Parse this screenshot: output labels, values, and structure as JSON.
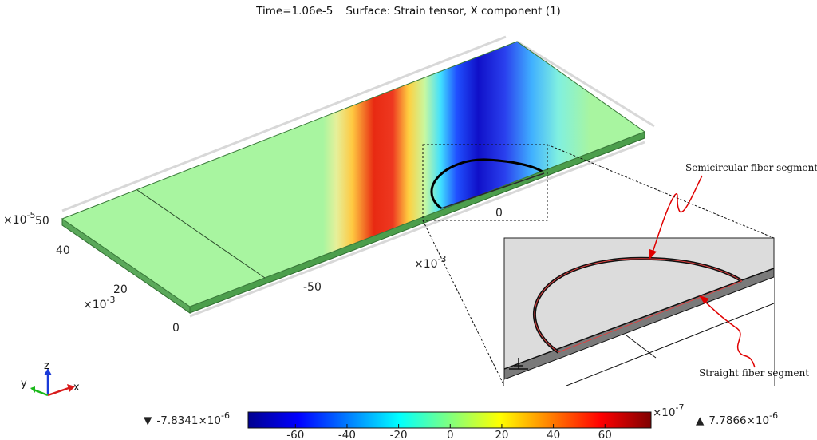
{
  "title": {
    "time": "Time=1.06e-5",
    "surface": "Surface: Strain tensor, X component (1)"
  },
  "axes": {
    "y_exp_left": "×10",
    "y_exp_left_power": "-5",
    "y_tick_top": "50",
    "y_tick_40": "40",
    "y_tick_20": "20",
    "y_exp_2": "×10",
    "y_exp_2_power": "-3",
    "y_tick_0": "0",
    "x_tick_m50": "-50",
    "x_tick_0": "0",
    "x_exp": "×10",
    "x_exp_power": "-3"
  },
  "triad": {
    "z": "z",
    "y": "y",
    "x": "x"
  },
  "annotations": {
    "semicircular": "Semicircular fiber segment",
    "straight": "Straight fiber segment"
  },
  "colorbar": {
    "min_symbol": "▼",
    "min_value": "-7.8341×10",
    "min_power": "-6",
    "max_symbol": "▲",
    "max_value": "7.7866×10",
    "max_power": "-6",
    "scale": "×10",
    "scale_power": "-7",
    "ticks": [
      "-60",
      "-40",
      "-20",
      "0",
      "20",
      "40",
      "60"
    ],
    "colors": [
      "#00008f",
      "#0000ff",
      "#007fff",
      "#00ffff",
      "#7fff7f",
      "#ffff00",
      "#ff7f00",
      "#ff0000",
      "#7f0000"
    ]
  }
}
